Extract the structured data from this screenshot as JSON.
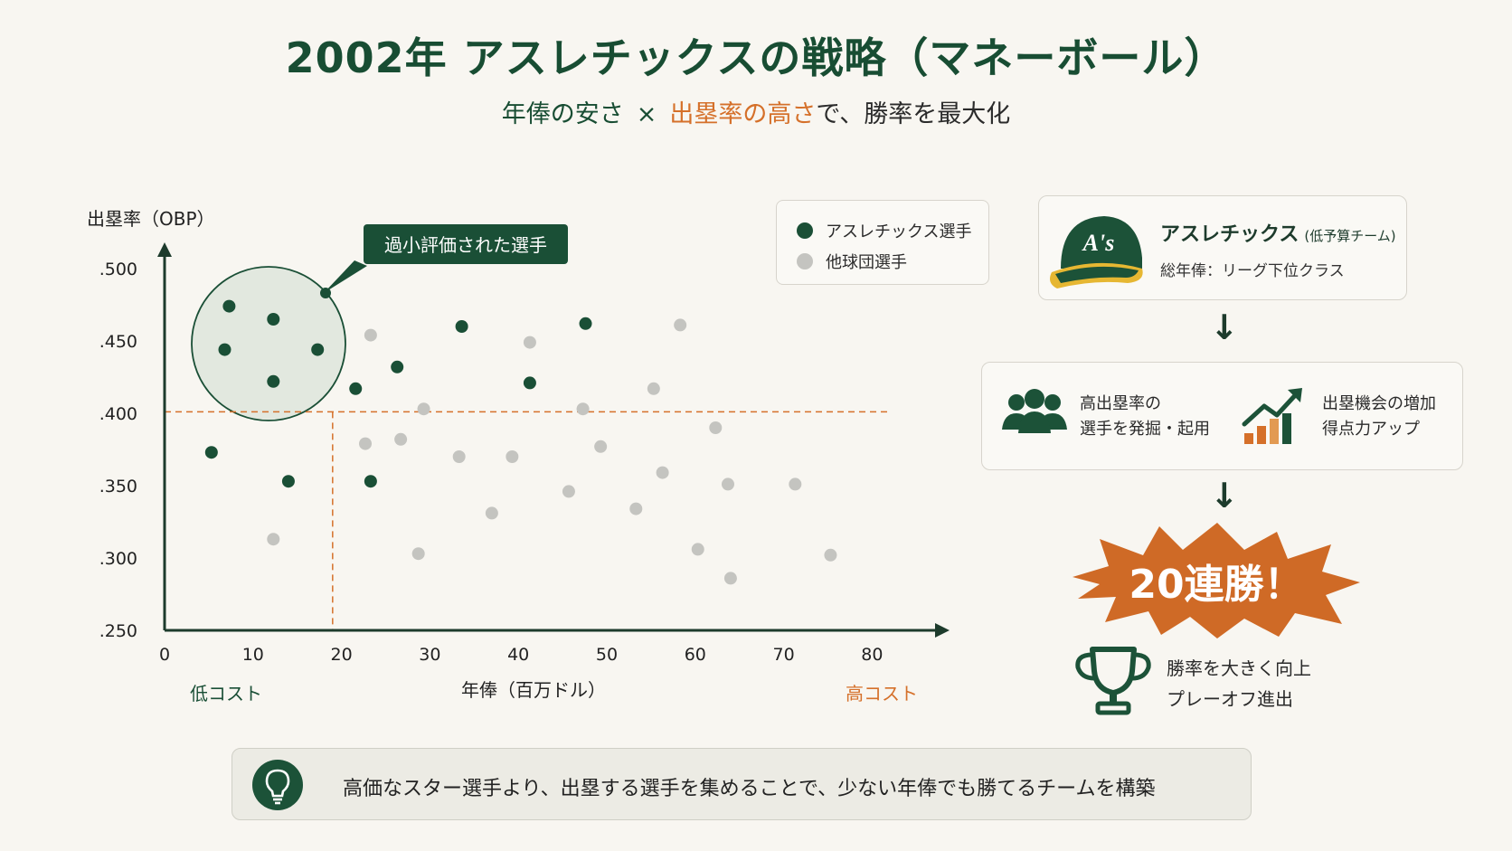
{
  "header": {
    "title": "2002年 アスレチックスの戦略（マネーボール）",
    "subtitle_part1": "年俸の安さ",
    "subtitle_times": "×",
    "subtitle_part2": "出塁率の高さ",
    "subtitle_part3": "で、勝率を最大化"
  },
  "chart_data": {
    "type": "scatter",
    "ylabel": "出塁率（OBP）",
    "xlabel": "年俸（百万ドル）",
    "x_low_label": "低コスト",
    "x_high_label": "高コスト",
    "xlim": [
      0,
      87
    ],
    "ylim": [
      0.25,
      0.515
    ],
    "x_ticks": [
      "0",
      "10",
      "20",
      "30",
      "40",
      "50",
      "60",
      "70",
      "80"
    ],
    "y_ticks": [
      ".500",
      ".450",
      ".400",
      ".350",
      ".300",
      ".250"
    ],
    "threshold_x": 19,
    "threshold_y": 0.401,
    "callout_label": "過小評価された選手",
    "series": [
      {
        "name": "アスレチックス選手",
        "color": "#1a4f36",
        "points": [
          [
            7.3,
            0.474
          ],
          [
            12.3,
            0.465
          ],
          [
            6.8,
            0.444
          ],
          [
            17.3,
            0.444
          ],
          [
            12.3,
            0.422
          ],
          [
            21.6,
            0.417
          ],
          [
            26.3,
            0.432
          ],
          [
            33.6,
            0.46
          ],
          [
            47.6,
            0.462
          ],
          [
            41.3,
            0.421
          ],
          [
            5.3,
            0.373
          ],
          [
            14,
            0.353
          ],
          [
            23.3,
            0.353
          ]
        ]
      },
      {
        "name": "他球団選手",
        "color": "#c4c4c0",
        "points": [
          [
            23.3,
            0.454
          ],
          [
            41.3,
            0.449
          ],
          [
            58.3,
            0.461
          ],
          [
            29.3,
            0.403
          ],
          [
            47.3,
            0.403
          ],
          [
            55.3,
            0.417
          ],
          [
            62.3,
            0.39
          ],
          [
            22.7,
            0.379
          ],
          [
            26.7,
            0.382
          ],
          [
            33.3,
            0.37
          ],
          [
            39.3,
            0.37
          ],
          [
            49.3,
            0.377
          ],
          [
            56.3,
            0.359
          ],
          [
            63.7,
            0.351
          ],
          [
            71.3,
            0.351
          ],
          [
            45.7,
            0.346
          ],
          [
            53.3,
            0.334
          ],
          [
            37,
            0.331
          ],
          [
            12.3,
            0.313
          ],
          [
            28.7,
            0.303
          ],
          [
            60.3,
            0.306
          ],
          [
            75.3,
            0.302
          ],
          [
            64,
            0.286
          ]
        ]
      }
    ]
  },
  "team": {
    "name": "アスレチックス",
    "qualifier": "(低予算チーム)",
    "payroll": "総年俸：リーグ下位クラス",
    "cap_logo_text": "A's"
  },
  "strategy": {
    "left_line1": "高出塁率の",
    "left_line2": "選手を発掘・起用",
    "right_line1": "出塁機会の増加",
    "right_line2": "得点力アップ"
  },
  "arrows": {
    "down": "↓"
  },
  "result": {
    "streak": "20連勝！",
    "line1": "勝率を大きく向上",
    "line2": "プレーオフ進出"
  },
  "footer": {
    "text": "高価なスター選手より、出塁する選手を集めることで、少ない年俸でも勝てるチームを構築"
  },
  "colors": {
    "green": "#1a4f36",
    "orange": "#d5702a",
    "grey": "#c4c4c0",
    "background": "#f8f6f1"
  }
}
